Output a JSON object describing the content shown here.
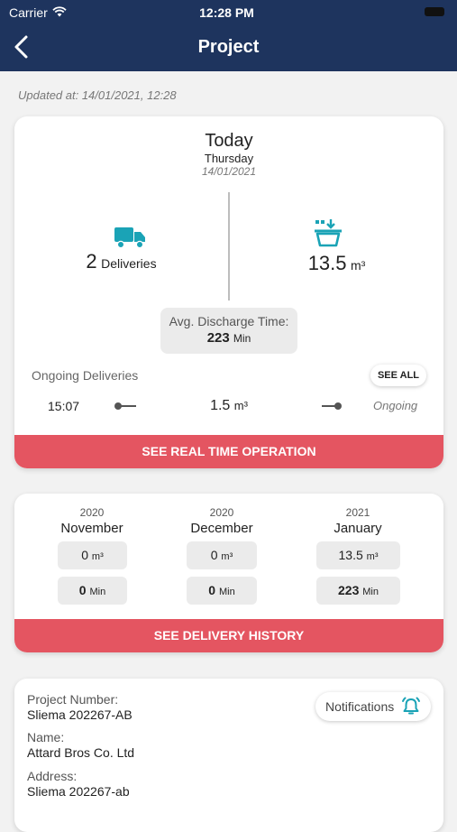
{
  "status_bar": {
    "carrier": "Carrier",
    "time": "12:28 PM"
  },
  "nav": {
    "title": "Project"
  },
  "updated": "Updated at: 14/01/2021, 12:28",
  "today": {
    "title": "Today",
    "weekday": "Thursday",
    "date": "14/01/2021",
    "deliveries_count": "2",
    "deliveries_label": "Deliveries",
    "volume_value": "13.5",
    "volume_unit": "m³",
    "avg_label": "Avg. Discharge Time:",
    "avg_value": "223",
    "avg_unit": "Min",
    "ongoing_label": "Ongoing Deliveries",
    "see_all": "SEE ALL",
    "delivery": {
      "time": "15:07",
      "amount": "1.5",
      "unit": "m³",
      "status": "Ongoing"
    },
    "cta": "SEE REAL TIME OPERATION"
  },
  "history": {
    "months": [
      {
        "year": "2020",
        "month": "November",
        "volume": "0",
        "volume_unit": "m³",
        "time": "0",
        "time_unit": "Min"
      },
      {
        "year": "2020",
        "month": "December",
        "volume": "0",
        "volume_unit": "m³",
        "time": "0",
        "time_unit": "Min"
      },
      {
        "year": "2021",
        "month": "January",
        "volume": "13.5",
        "volume_unit": "m³",
        "time": "223",
        "time_unit": "Min"
      }
    ],
    "cta": "SEE DELIVERY HISTORY"
  },
  "project": {
    "number_label": "Project Number:",
    "number": "Sliema 202267-AB",
    "name_label": "Name:",
    "name": "Attard Bros Co. Ltd",
    "address_label": "Address:",
    "address": "Sliema 202267-ab",
    "notifications": "Notifications"
  },
  "colors": {
    "nav": "#1e345e",
    "accent": "#e45561",
    "icon": "#1aa3b6"
  },
  "icons": {
    "back": "chevron-left-icon",
    "wifi": "wifi-icon",
    "battery": "battery-icon",
    "truck": "truck-icon",
    "basket": "basket-icon",
    "bell": "bell-icon"
  }
}
